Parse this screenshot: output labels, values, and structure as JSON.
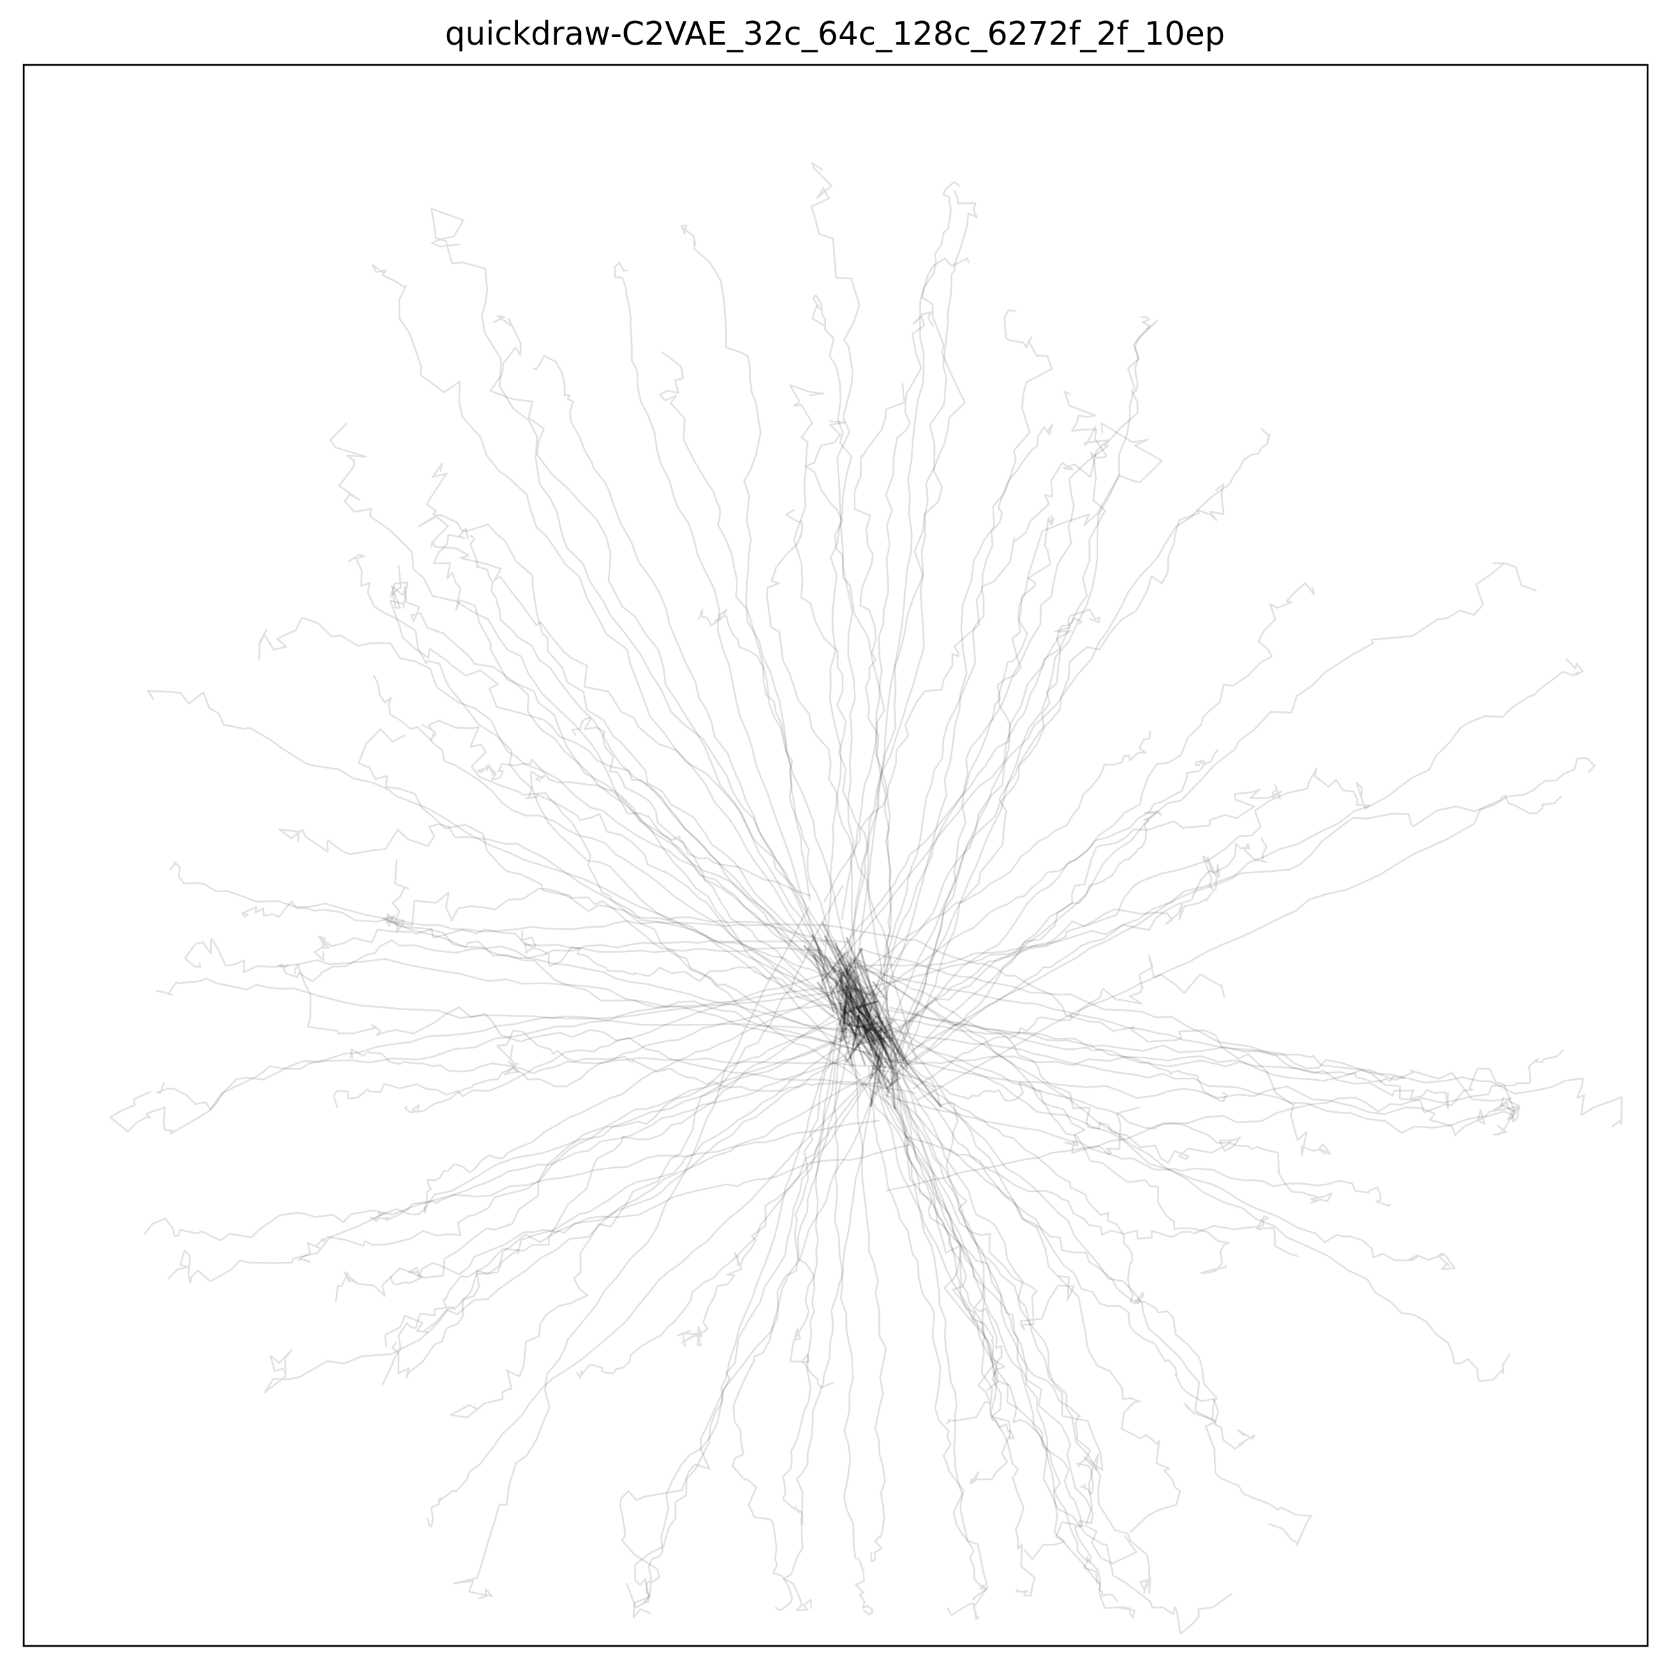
{
  "chart_data": {
    "type": "line",
    "title": "quickdraw-C2VAE_32c_64c_128c_6272f_2f_10ep",
    "xlabel": "",
    "ylabel": "",
    "xticks": [],
    "yticks": [],
    "grid": false,
    "legend": null,
    "xlim": [
      -1.0,
      1.0
    ],
    "ylim": [
      -1.0,
      1.0
    ],
    "line_color": "#000000",
    "line_alpha": 0.12,
    "n_traces": 140,
    "cluster_center": [
      0.03,
      -0.2
    ],
    "description_type": "latent-space trajectories radiating from a dense central cluster"
  }
}
